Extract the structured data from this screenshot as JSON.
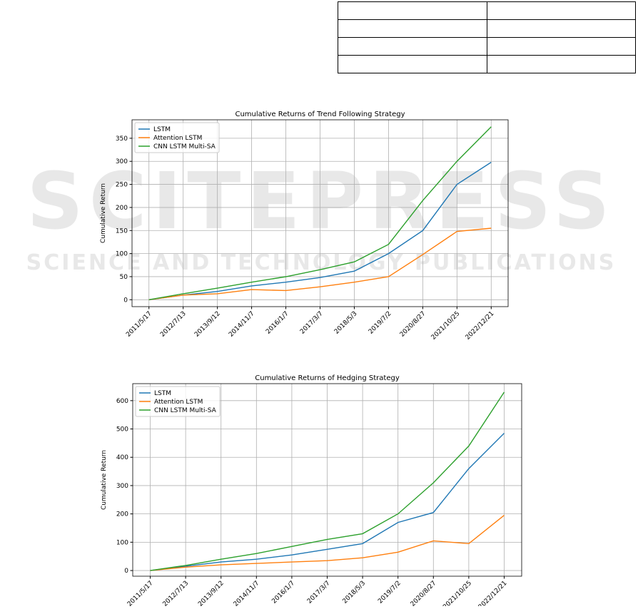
{
  "watermark": {
    "title": "SCITEPRESS",
    "subtitle": "SCIENCE AND TECHNOLOGY PUBLICATIONS"
  },
  "chart_data": [
    {
      "type": "line",
      "title": "Cumulative Returns of Trend Following Strategy",
      "ylabel": "Cumulative Return",
      "categories": [
        "2011/5/17",
        "2012/7/13",
        "2013/9/12",
        "2014/11/7",
        "2016/1/7",
        "2017/3/7",
        "2018/5/3",
        "2019/7/2",
        "2020/8/27",
        "2021/10/25",
        "2022/12/21"
      ],
      "series": [
        {
          "name": "LSTM",
          "color": "#1f77b4",
          "values": [
            0,
            10,
            18,
            30,
            38,
            48,
            62,
            100,
            150,
            250,
            298
          ]
        },
        {
          "name": "Attention LSTM",
          "color": "#ff7f0e",
          "values": [
            0,
            10,
            13,
            22,
            20,
            28,
            38,
            50,
            98,
            148,
            155
          ]
        },
        {
          "name": "CNN LSTM Multi-SA",
          "color": "#2ca02c",
          "values": [
            0,
            13,
            25,
            38,
            50,
            65,
            82,
            120,
            215,
            300,
            375
          ]
        }
      ],
      "ylim": [
        -15,
        390
      ],
      "yticks": [
        0,
        50,
        100,
        150,
        200,
        250,
        300,
        350
      ],
      "grid": true,
      "legend": "upper left"
    },
    {
      "type": "line",
      "title": "Cumulative Returns of Hedging Strategy",
      "ylabel": "Cumulative Return",
      "categories": [
        "2011/5/17",
        "2012/7/13",
        "2013/9/12",
        "2014/11/7",
        "2016/1/7",
        "2017/3/7",
        "2018/5/3",
        "2019/7/2",
        "2020/8/27",
        "2021/10/25",
        "2022/12/21"
      ],
      "series": [
        {
          "name": "LSTM",
          "color": "#1f77b4",
          "values": [
            0,
            15,
            30,
            40,
            55,
            75,
            95,
            170,
            205,
            360,
            485
          ]
        },
        {
          "name": "Attention LSTM",
          "color": "#ff7f0e",
          "values": [
            0,
            12,
            20,
            25,
            30,
            35,
            45,
            65,
            105,
            95,
            195
          ]
        },
        {
          "name": "CNN LSTM Multi-SA",
          "color": "#2ca02c",
          "values": [
            0,
            18,
            40,
            60,
            85,
            110,
            130,
            200,
            310,
            440,
            630
          ]
        }
      ],
      "ylim": [
        -20,
        660
      ],
      "yticks": [
        0,
        100,
        200,
        300,
        400,
        500,
        600
      ],
      "grid": true,
      "legend": "upper left"
    }
  ]
}
